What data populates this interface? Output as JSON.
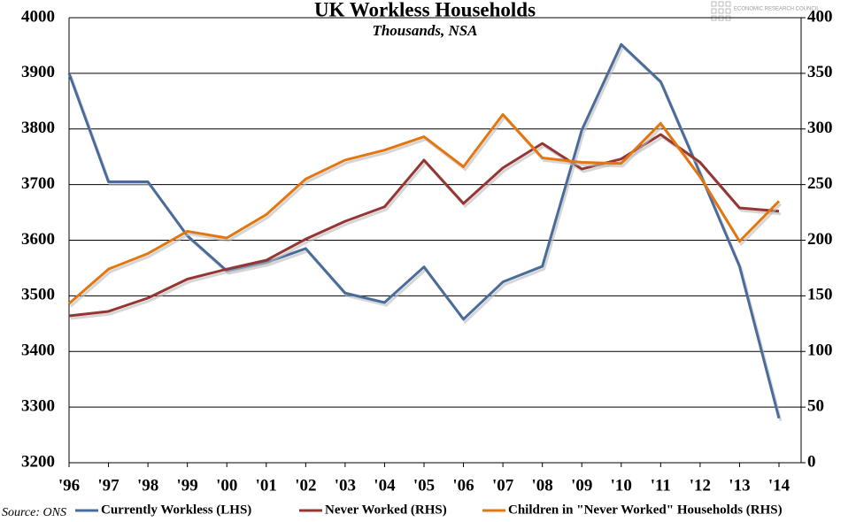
{
  "chart_data": {
    "type": "line",
    "title": "UK Workless Households",
    "subtitle": "Thousands, NSA",
    "source": "Source: ONS",
    "brand": "ECONOMIC RESEARCH COUNCIL",
    "categories": [
      "'96",
      "'97",
      "'98",
      "'99",
      "'00",
      "'01",
      "'02",
      "'03",
      "'04",
      "'05",
      "'06",
      "'07",
      "'08",
      "'09",
      "'10",
      "'11",
      "'12",
      "'13",
      "'14"
    ],
    "series": [
      {
        "name": "Currently Workless (LHS)",
        "color": "#4a6c9b",
        "values": [
          3900,
          3705,
          3705,
          3608,
          3545,
          3560,
          3585,
          3505,
          3488,
          3552,
          3458,
          3525,
          3553,
          3798,
          3952,
          3885,
          3720,
          3553,
          3280
        ]
      },
      {
        "name": "Never Worked (RHS)",
        "color": "#943634",
        "axis": "y2",
        "values": [
          132,
          136,
          148,
          165,
          174,
          182,
          201,
          217,
          230,
          272,
          233,
          265,
          287,
          264,
          273,
          295,
          270,
          229,
          226
        ]
      },
      {
        "name": "Children in \"Never Worked\" Households (RHS)",
        "color": "#e3760f",
        "axis": "y2",
        "values": [
          143,
          174,
          188,
          208,
          202,
          223,
          255,
          272,
          281,
          293,
          266,
          313,
          274,
          270,
          269,
          305,
          257,
          199,
          235
        ]
      }
    ],
    "ylim": [
      3200,
      4000
    ],
    "yticks": [
      3200,
      3300,
      3400,
      3500,
      3600,
      3700,
      3800,
      3900,
      4000
    ],
    "y2lim": [
      0,
      400
    ],
    "y2ticks": [
      0,
      50,
      100,
      150,
      200,
      250,
      300,
      350,
      400
    ],
    "grid": true
  }
}
